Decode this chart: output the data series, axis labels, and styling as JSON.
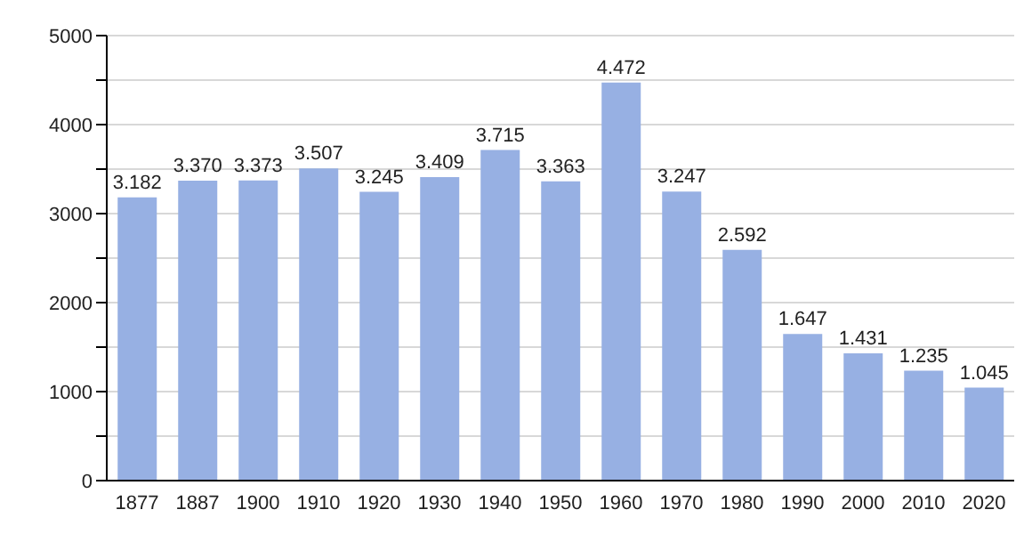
{
  "chart_data": {
    "type": "bar",
    "categories": [
      "1877",
      "1887",
      "1900",
      "1910",
      "1920",
      "1930",
      "1940",
      "1950",
      "1960",
      "1970",
      "1980",
      "1990",
      "2000",
      "2010",
      "2020"
    ],
    "values": [
      3182,
      3370,
      3373,
      3507,
      3245,
      3409,
      3715,
      3363,
      4472,
      3247,
      2592,
      1647,
      1431,
      1235,
      1045
    ],
    "value_labels": [
      "3.182",
      "3.370",
      "3.373",
      "3.507",
      "3.245",
      "3.409",
      "3.715",
      "3.363",
      "4.472",
      "3.247",
      "2.592",
      "1.647",
      "1.431",
      "1.235",
      "1.045"
    ],
    "color": "#97b0e3",
    "ylim": [
      0,
      5000
    ],
    "yticks": [
      0,
      {
        "value": 500,
        "label": null
      },
      1000,
      {
        "value": 1500,
        "label": null
      },
      2000,
      {
        "value": 2500,
        "label": null
      },
      3000,
      {
        "value": 3500,
        "label": null
      },
      4000,
      {
        "value": 4500,
        "label": null
      },
      5000
    ],
    "grid": "y"
  }
}
